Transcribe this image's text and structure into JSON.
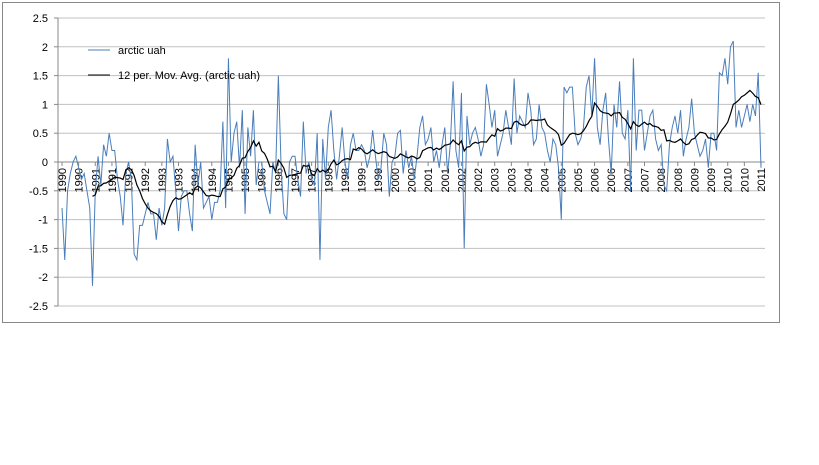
{
  "chart_data": {
    "type": "line",
    "categories": [
      "1990",
      null,
      null,
      null,
      null,
      null,
      "1990",
      null,
      null,
      null,
      null,
      null,
      "1991",
      null,
      null,
      null,
      null,
      null,
      "1991",
      null,
      null,
      null,
      null,
      null,
      "1992",
      null,
      null,
      null,
      null,
      null,
      "1992",
      null,
      null,
      null,
      null,
      null,
      "1993",
      null,
      null,
      null,
      null,
      null,
      "1993",
      null,
      null,
      null,
      null,
      null,
      "1994",
      null,
      null,
      null,
      null,
      null,
      "1994",
      null,
      null,
      null,
      null,
      null,
      "1995",
      null,
      null,
      null,
      null,
      null,
      "1995",
      null,
      null,
      null,
      null,
      null,
      "1996",
      null,
      null,
      null,
      null,
      null,
      "1996",
      null,
      null,
      null,
      null,
      null,
      "1997",
      null,
      null,
      null,
      null,
      null,
      "1997",
      null,
      null,
      null,
      null,
      null,
      "1998",
      null,
      null,
      null,
      null,
      null,
      "1998",
      null,
      null,
      null,
      null,
      null,
      "1999",
      null,
      null,
      null,
      null,
      null,
      "1999",
      null,
      null,
      null,
      null,
      null,
      "2000",
      null,
      null,
      null,
      null,
      null,
      "2000",
      null,
      null,
      null,
      null,
      null,
      "2001",
      null,
      null,
      null,
      null,
      null,
      "2001",
      null,
      null,
      null,
      null,
      null,
      "2002",
      null,
      null,
      null,
      null,
      null,
      "2002",
      null,
      null,
      null,
      null,
      null,
      "2003",
      null,
      null,
      null,
      null,
      null,
      "2003",
      null,
      null,
      null,
      null,
      null,
      "2004",
      null,
      null,
      null,
      null,
      null,
      "2004",
      null,
      null,
      null,
      null,
      null,
      "2005",
      null,
      null,
      null,
      null,
      null,
      "2005",
      null,
      null,
      null,
      null,
      null,
      "2006",
      null,
      null,
      null,
      null,
      null,
      "2006",
      null,
      null,
      null,
      null,
      null,
      "2007",
      null,
      null,
      null,
      null,
      null,
      "2007",
      null,
      null,
      null,
      null,
      null,
      "2008",
      null,
      null,
      null,
      null,
      null,
      "2008",
      null,
      null,
      null,
      null,
      null,
      "2009",
      null,
      null,
      null,
      null,
      null,
      "2009",
      null,
      null,
      null,
      null,
      null,
      "2010",
      null,
      null,
      null,
      null,
      null,
      "2010",
      null,
      null,
      null,
      null,
      null,
      "2011"
    ],
    "series": [
      {
        "name": "arctic uah",
        "color": "#4a7ebb",
        "values": [
          -0.8,
          -1.7,
          -0.5,
          -0.2,
          0.0,
          0.1,
          -0.1,
          -0.3,
          -0.2,
          -0.5,
          -0.8,
          -2.15,
          -0.5,
          0.1,
          -0.4,
          0.3,
          0.1,
          0.5,
          0.2,
          0.2,
          -0.3,
          -0.6,
          -1.1,
          -0.2,
          0.0,
          -0.3,
          -1.6,
          -1.7,
          -1.1,
          -1.1,
          -0.9,
          -0.7,
          -0.9,
          -0.9,
          -1.35,
          -0.8,
          -1.1,
          -0.8,
          0.4,
          0.0,
          0.1,
          -0.5,
          -1.2,
          -0.6,
          -0.5,
          -0.5,
          -0.9,
          -1.2,
          0.3,
          -0.4,
          0.0,
          -0.8,
          -0.7,
          -0.6,
          -1.0,
          -0.7,
          -0.7,
          -0.5,
          0.7,
          -0.8,
          1.8,
          0.0,
          0.5,
          0.7,
          -0.1,
          0.9,
          -0.9,
          0.6,
          0.1,
          0.9,
          -0.4,
          0.0,
          0.0,
          -0.5,
          -0.7,
          -0.9,
          0.0,
          -0.2,
          1.5,
          -0.1,
          -0.9,
          -1.0,
          0.0,
          0.1,
          0.1,
          -0.3,
          -0.6,
          0.7,
          -0.2,
          0.0,
          -0.3,
          -0.4,
          0.5,
          -1.7,
          0.4,
          -0.3,
          0.6,
          0.9,
          0.2,
          -0.3,
          0.1,
          0.6,
          0.0,
          -0.3,
          0.3,
          0.5,
          0.2,
          0.2,
          0.3,
          0.2,
          -0.1,
          0.1,
          0.55,
          0.1,
          -0.3,
          -0.1,
          0.5,
          0.3,
          -0.6,
          0.0,
          0.1,
          0.5,
          0.55,
          -0.2,
          0.2,
          -0.1,
          0.1,
          -0.3,
          0.1,
          0.6,
          0.8,
          0.3,
          0.4,
          0.6,
          0.0,
          0.2,
          -0.1,
          0.3,
          0.6,
          -0.2,
          0.3,
          1.4,
          0.2,
          -0.1,
          1.2,
          -1.5,
          0.8,
          0.3,
          0.5,
          0.6,
          0.4,
          0.1,
          0.3,
          1.35,
          1.0,
          0.6,
          0.9,
          0.1,
          0.3,
          0.5,
          0.9,
          0.6,
          0.3,
          1.45,
          0.5,
          0.8,
          0.7,
          0.6,
          1.2,
          0.9,
          0.3,
          0.4,
          1.0,
          0.6,
          0.5,
          0.2,
          0.0,
          0.4,
          0.3,
          -0.1,
          -1.0,
          1.3,
          1.2,
          1.3,
          1.3,
          0.5,
          0.3,
          0.4,
          0.6,
          1.3,
          1.5,
          0.8,
          1.8,
          0.6,
          0.3,
          0.9,
          1.2,
          0.4,
          -0.2,
          1.0,
          0.6,
          1.4,
          0.5,
          0.4,
          0.9,
          -0.5,
          1.8,
          0.2,
          0.9,
          0.9,
          0.2,
          0.5,
          0.8,
          0.9,
          0.4,
          0.2,
          0.3,
          -0.4,
          -0.5,
          0.3,
          0.6,
          0.8,
          0.5,
          0.9,
          0.1,
          0.4,
          0.6,
          1.1,
          0.5,
          0.3,
          0.1,
          0.2,
          0.4,
          -0.1,
          0.5,
          0.5,
          0.2,
          1.55,
          1.5,
          1.8,
          1.35,
          2.0,
          2.1,
          0.6,
          0.9,
          0.6,
          0.8,
          1.0,
          0.7,
          1.0,
          0.8,
          1.55,
          -0.1
        ]
      }
    ],
    "trendline": {
      "name": "12 per. Mov. Avg. (arctic uah)",
      "period": 12,
      "color": "#000000"
    },
    "ylim": [
      -2.5,
      2.5
    ],
    "yticks": [
      -2.5,
      -2,
      -1.5,
      -1,
      -0.5,
      0,
      0.5,
      1,
      1.5,
      2,
      2.5
    ],
    "grid": true,
    "legend": "upper-left"
  }
}
